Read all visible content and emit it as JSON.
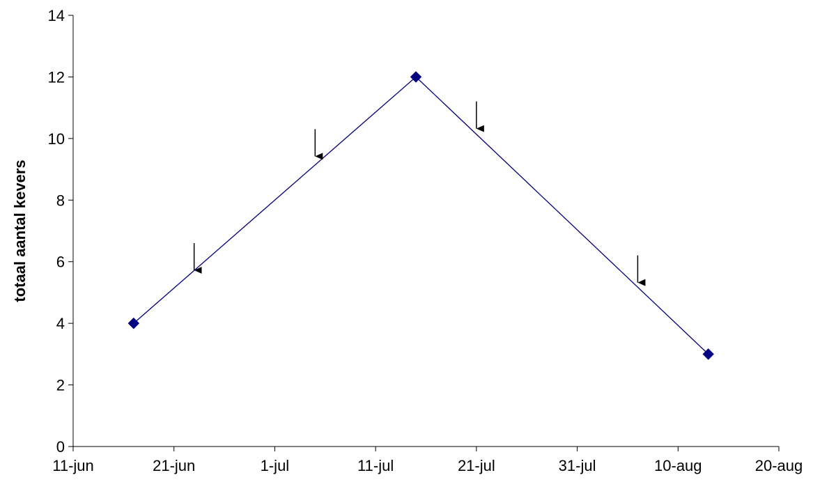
{
  "chart_data": {
    "type": "line",
    "title": "",
    "xlabel": "",
    "ylabel": "totaal aantal kevers",
    "x_axis": {
      "type": "date",
      "range": [
        "2000-06-11",
        "2000-08-20"
      ],
      "tick_dates": [
        "2000-06-11",
        "2000-06-21",
        "2000-07-01",
        "2000-07-11",
        "2000-07-21",
        "2000-07-31",
        "2000-08-10",
        "2000-08-20"
      ],
      "tick_labels": [
        "11-jun",
        "21-jun",
        "1-jul",
        "11-jul",
        "21-jul",
        "31-jul",
        "10-aug",
        "20-aug"
      ]
    },
    "ylim": [
      0,
      14
    ],
    "y_ticks": [
      0,
      2,
      4,
      6,
      8,
      10,
      12,
      14
    ],
    "grid": false,
    "legend": "none",
    "series": [
      {
        "color": "#000080",
        "marker": "diamond",
        "points": [
          {
            "x": "2000-06-17",
            "y": 4
          },
          {
            "x": "2000-07-15",
            "y": 12
          },
          {
            "x": "2000-08-13",
            "y": 3
          }
        ]
      }
    ],
    "annotations": [
      {
        "type": "arrow-down",
        "x": "2000-06-23",
        "y": 5.7
      },
      {
        "type": "arrow-down",
        "x": "2000-07-05",
        "y": 9.4
      },
      {
        "type": "arrow-down",
        "x": "2000-07-21",
        "y": 10.3
      },
      {
        "type": "arrow-down",
        "x": "2000-08-06",
        "y": 5.3
      }
    ]
  }
}
